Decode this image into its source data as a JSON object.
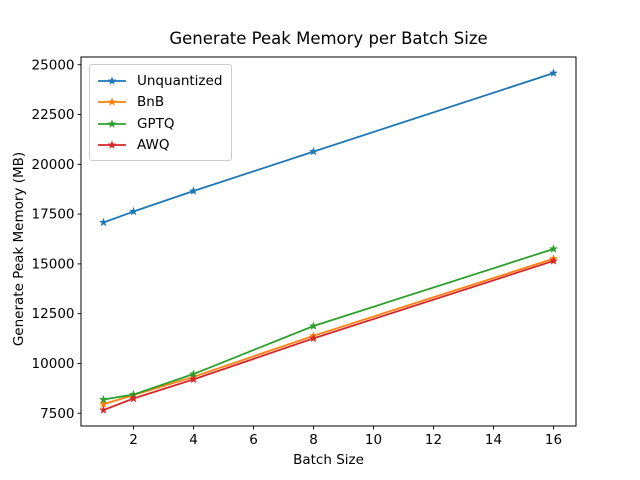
{
  "chart_data": {
    "type": "line",
    "title": "Generate Peak Memory per Batch Size",
    "xlabel": "Batch Size",
    "ylabel": "Generate Peak Memory (MB)",
    "x": [
      1,
      2,
      4,
      8,
      16
    ],
    "series": [
      {
        "name": "Unquantized",
        "color": "#1f77b4",
        "values": [
          17080,
          17630,
          18660,
          20640,
          24580
        ]
      },
      {
        "name": "BnB",
        "color": "#ff7f0e",
        "values": [
          7960,
          8410,
          9330,
          11390,
          15260
        ]
      },
      {
        "name": "GPTQ",
        "color": "#2ca02c",
        "values": [
          8190,
          8440,
          9470,
          11880,
          15750
        ]
      },
      {
        "name": "AWQ",
        "color": "#d62728",
        "values": [
          7660,
          8240,
          9200,
          11260,
          15150
        ]
      }
    ],
    "marker": "star",
    "xlim": [
      0.25,
      16.75
    ],
    "ylim": [
      6860,
      25390
    ],
    "xticks": [
      2,
      4,
      6,
      8,
      10,
      12,
      14,
      16
    ],
    "yticks": [
      7500,
      10000,
      12500,
      15000,
      17500,
      20000,
      22500,
      25000
    ],
    "grid": false,
    "legend_position": "upper left",
    "background_color": "#ffffff",
    "spine_color": "#000000",
    "legend_border_color": "#cccccc"
  }
}
